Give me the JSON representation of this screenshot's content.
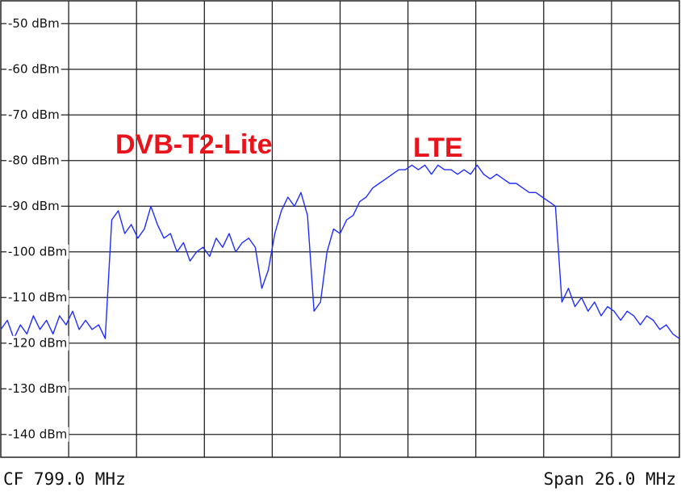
{
  "chart_data": {
    "type": "line",
    "annotations": [
      "DVB-T2-Lite",
      "LTE"
    ],
    "footer_left": "CF 799.0 MHz",
    "footer_right": "Span 26.0 MHz",
    "xlim": [
      786,
      812
    ],
    "ylim": [
      -145,
      -45
    ],
    "yticks": [
      {
        "value": -50,
        "label": "-50 dBm"
      },
      {
        "value": -60,
        "label": "-60 dBm"
      },
      {
        "value": -70,
        "label": "-70 dBm"
      },
      {
        "value": -80,
        "label": "-80 dBm"
      },
      {
        "value": -90,
        "label": "-90 dBm"
      },
      {
        "value": -100,
        "label": "-100 dBm"
      },
      {
        "value": -110,
        "label": "-110 dBm"
      },
      {
        "value": -120,
        "label": "-120 dBm"
      },
      {
        "value": -130,
        "label": "-130 dBm"
      },
      {
        "value": -140,
        "label": "-140 dBm"
      }
    ],
    "grid": true,
    "color": "#1f2dff",
    "x": [
      786,
      786.25,
      786.5,
      786.75,
      787,
      787.25,
      787.5,
      787.75,
      788,
      788.25,
      788.5,
      788.75,
      789,
      789.25,
      789.5,
      789.75,
      790,
      790.25,
      790.5,
      790.75,
      791,
      791.25,
      791.5,
      791.75,
      792,
      792.25,
      792.5,
      792.75,
      793,
      793.25,
      793.5,
      793.75,
      794,
      794.25,
      794.5,
      794.75,
      795,
      795.25,
      795.5,
      795.75,
      796,
      796.25,
      796.5,
      796.75,
      797,
      797.25,
      797.5,
      797.75,
      798,
      798.25,
      798.5,
      798.75,
      799,
      799.25,
      799.5,
      799.75,
      800,
      800.25,
      800.5,
      800.75,
      801,
      801.25,
      801.5,
      801.75,
      802,
      802.25,
      802.5,
      802.75,
      803,
      803.25,
      803.5,
      803.75,
      804,
      804.25,
      804.5,
      804.75,
      805,
      805.25,
      805.5,
      805.75,
      806,
      806.25,
      806.5,
      806.75,
      807,
      807.25,
      807.5,
      807.75,
      808,
      808.25,
      808.5,
      808.75,
      809,
      809.25,
      809.5,
      809.75,
      810,
      810.25,
      810.5,
      810.75,
      811,
      811.25,
      811.5,
      811.75,
      812
    ],
    "values": [
      -117,
      -115,
      -119,
      -116,
      -118,
      -114,
      -117,
      -115,
      -118,
      -114,
      -116,
      -113,
      -117,
      -115,
      -117,
      -116,
      -119,
      -93,
      -91,
      -96,
      -94,
      -97,
      -95,
      -90,
      -94,
      -97,
      -96,
      -100,
      -98,
      -102,
      -100,
      -99,
      -101,
      -97,
      -99,
      -96,
      -100,
      -98,
      -97,
      -99,
      -108,
      -104,
      -96,
      -91,
      -88,
      -90,
      -87,
      -92,
      -113,
      -111,
      -100,
      -95,
      -96,
      -93,
      -92,
      -89,
      -88,
      -86,
      -85,
      -84,
      -83,
      -82,
      -82,
      -81,
      -82,
      -81,
      -83,
      -81,
      -82,
      -82,
      -83,
      -82,
      -83,
      -81,
      -83,
      -84,
      -83,
      -84,
      -85,
      -85,
      -86,
      -87,
      -87,
      -88,
      -89,
      -90,
      -111,
      -108,
      -112,
      -110,
      -113,
      -111,
      -114,
      -112,
      -113,
      -115,
      -113,
      -114,
      -116,
      -114,
      -115,
      -117,
      -116,
      -118,
      -119
    ]
  }
}
